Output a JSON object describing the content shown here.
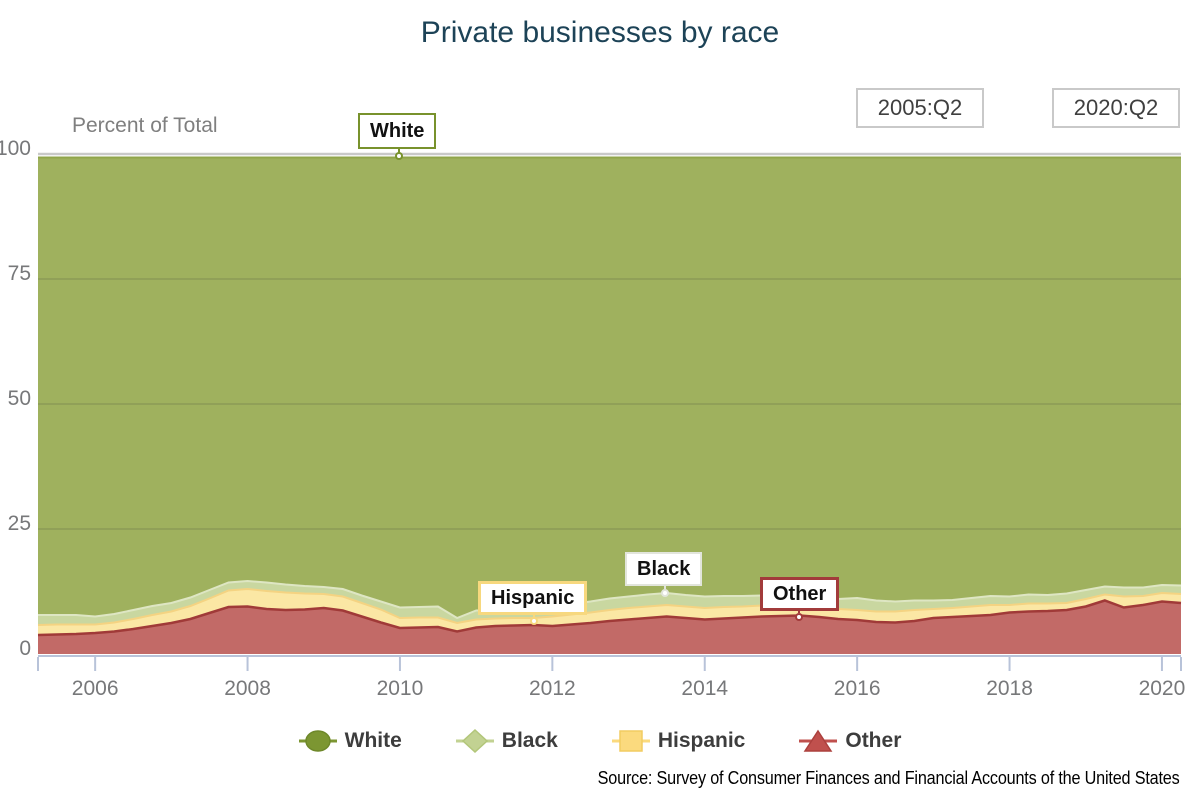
{
  "title": "Private businesses by race",
  "controls": {
    "start_date": "2005:Q2",
    "end_date": "2020:Q2"
  },
  "axis_label": "Percent of Total",
  "source": "Source: Survey of Consumer Finances and Financial Accounts of the United States",
  "colors": {
    "title_text": "#1d4357",
    "axis_line": "#b8c3d9",
    "tick_label": "#77787a",
    "gridline_100": "#c9c9c9",
    "gridline_inner": "rgba(60,60,60,0.14)"
  },
  "annotations": [
    {
      "label": "White",
      "color": "#78922c"
    },
    {
      "label": "Hispanic",
      "color": "#f7d87e"
    },
    {
      "label": "Black",
      "color": "#e2e5dc"
    },
    {
      "label": "Other",
      "color": "#a23b3b"
    }
  ],
  "legend": [
    {
      "label": "White",
      "marker": "circle",
      "fill": "#7c9632",
      "stroke": "#6e882a"
    },
    {
      "label": "Black",
      "marker": "diamond",
      "fill": "#c2d292",
      "stroke": "#b2c679"
    },
    {
      "label": "Hispanic",
      "marker": "square",
      "fill": "#fbda7e",
      "stroke": "#f2cc60"
    },
    {
      "label": "Other",
      "marker": "triangle",
      "fill": "#c0504d",
      "stroke": "#ac403d"
    }
  ],
  "chart_data": {
    "type": "area",
    "stacked": true,
    "title": "Private businesses by race",
    "xlabel": "",
    "ylabel": "Percent of Total",
    "ylim": [
      0,
      100
    ],
    "y_ticks": [
      0,
      25,
      50,
      75,
      100
    ],
    "x_ticks": [
      2006,
      2008,
      2010,
      2012,
      2014,
      2016,
      2018,
      2020
    ],
    "x_range": [
      2005.25,
      2020.25
    ],
    "legend_position": "bottom",
    "grid": true,
    "x": [
      2005.25,
      2005.5,
      2005.75,
      2006,
      2006.25,
      2006.5,
      2006.75,
      2007,
      2007.25,
      2007.5,
      2007.75,
      2008,
      2008.25,
      2008.5,
      2008.75,
      2009,
      2009.25,
      2009.5,
      2009.75,
      2010,
      2010.25,
      2010.5,
      2010.75,
      2011,
      2011.25,
      2011.5,
      2011.75,
      2012,
      2012.25,
      2012.5,
      2012.75,
      2013,
      2013.25,
      2013.5,
      2013.75,
      2014,
      2014.25,
      2014.5,
      2014.75,
      2015,
      2015.25,
      2015.5,
      2015.75,
      2016,
      2016.25,
      2016.5,
      2016.75,
      2017,
      2017.25,
      2017.5,
      2017.75,
      2018,
      2018.25,
      2018.5,
      2018.75,
      2019,
      2019.25,
      2019.5,
      2019.75,
      2020,
      2020.25
    ],
    "series": [
      {
        "name": "Other",
        "color": "#c26a67",
        "line_color": "#a03a38",
        "values": [
          3.8,
          3.9,
          4.0,
          4.2,
          4.5,
          5.0,
          5.6,
          6.2,
          7.0,
          8.2,
          9.4,
          9.5,
          9.0,
          8.8,
          8.9,
          9.2,
          8.7,
          7.5,
          6.3,
          5.2,
          5.3,
          5.4,
          4.5,
          5.3,
          5.6,
          5.7,
          5.8,
          5.6,
          5.9,
          6.2,
          6.6,
          6.9,
          7.2,
          7.5,
          7.2,
          6.9,
          7.1,
          7.3,
          7.5,
          7.6,
          7.7,
          7.4,
          7.0,
          6.8,
          6.4,
          6.3,
          6.6,
          7.2,
          7.4,
          7.6,
          7.8,
          8.3,
          8.5,
          8.6,
          8.8,
          9.5,
          10.7,
          9.3,
          9.8,
          10.5,
          10.2
        ]
      },
      {
        "name": "Hispanic",
        "color": "#fbe7a4",
        "line_color": "#f4d382",
        "values": [
          2.0,
          2.0,
          1.9,
          1.7,
          1.8,
          2.0,
          2.2,
          2.3,
          2.6,
          2.9,
          3.3,
          3.5,
          3.6,
          3.5,
          3.2,
          2.8,
          2.8,
          2.7,
          2.6,
          2.0,
          2.0,
          1.9,
          1.7,
          1.6,
          1.5,
          1.5,
          1.4,
          1.9,
          2.0,
          2.1,
          2.2,
          2.3,
          2.3,
          2.3,
          2.3,
          2.3,
          2.3,
          2.2,
          2.2,
          2.1,
          2.0,
          2.0,
          2.0,
          2.0,
          2.1,
          2.2,
          2.2,
          1.8,
          1.8,
          1.9,
          2.0,
          1.5,
          1.6,
          1.5,
          1.4,
          1.5,
          1.2,
          2.2,
          1.8,
          1.7,
          1.8
        ]
      },
      {
        "name": "Black",
        "color": "#c9d7a0",
        "line_color": "#dee6c3",
        "values": [
          2.0,
          1.9,
          1.9,
          1.6,
          1.7,
          1.8,
          1.8,
          1.7,
          1.7,
          1.7,
          1.6,
          1.6,
          1.7,
          1.6,
          1.5,
          1.4,
          1.5,
          1.5,
          1.6,
          2.1,
          2.1,
          2.2,
          1.0,
          1.8,
          1.7,
          1.6,
          1.7,
          2.0,
          2.1,
          2.2,
          2.3,
          2.3,
          2.4,
          2.4,
          2.3,
          2.3,
          2.2,
          2.1,
          2.0,
          1.9,
          1.9,
          1.9,
          2.0,
          2.4,
          2.2,
          2.0,
          1.9,
          1.7,
          1.6,
          1.7,
          1.8,
          1.7,
          1.8,
          1.7,
          1.9,
          1.8,
          1.6,
          1.8,
          1.7,
          1.6,
          1.7
        ]
      },
      {
        "name": "White",
        "color": "#9fb15e",
        "line_color": "#90a54b",
        "values": [
          91.5,
          91.5,
          91.5,
          91.8,
          91.3,
          90.5,
          89.7,
          89.1,
          88.0,
          86.5,
          85.0,
          84.7,
          85.0,
          85.4,
          85.7,
          85.9,
          86.3,
          87.6,
          88.8,
          90.0,
          89.9,
          89.8,
          92.1,
          90.6,
          90.5,
          90.5,
          90.4,
          89.8,
          89.3,
          88.8,
          88.2,
          87.8,
          87.4,
          87.1,
          87.5,
          87.8,
          87.7,
          87.7,
          87.6,
          87.7,
          87.7,
          88.0,
          88.3,
          88.1,
          88.6,
          88.8,
          88.6,
          88.6,
          88.5,
          88.1,
          87.7,
          87.8,
          87.4,
          87.5,
          87.2,
          86.5,
          85.8,
          86.0,
          86.0,
          85.5,
          85.6
        ]
      }
    ]
  }
}
